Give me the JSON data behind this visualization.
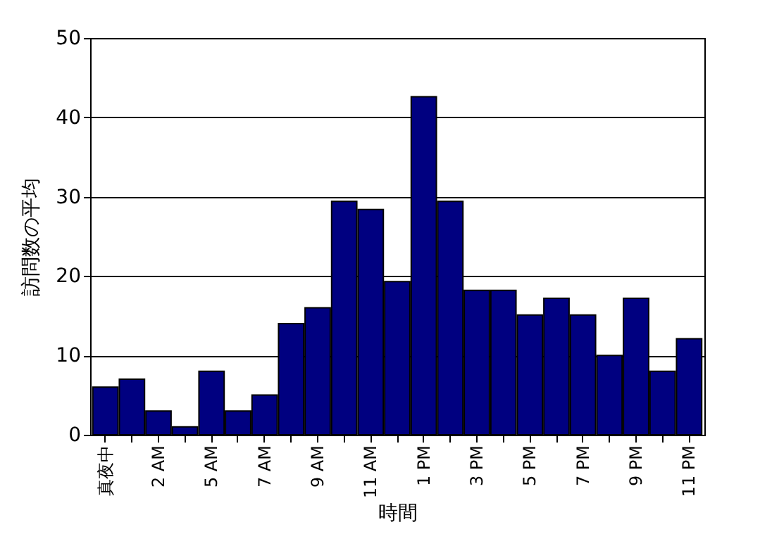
{
  "chart_data": {
    "type": "bar",
    "xlabel": "時間",
    "ylabel": "訪問数の平均",
    "categories": [
      "真夜中",
      null,
      "2 AM",
      null,
      "5 AM",
      null,
      "7 AM",
      null,
      "9 AM",
      null,
      "11 AM",
      null,
      "1 PM",
      null,
      "3 PM",
      null,
      "5 PM",
      null,
      "7 PM",
      null,
      "9 PM",
      null,
      "11 PM"
    ],
    "values": [
      6,
      7,
      3,
      1,
      8,
      3,
      5,
      14,
      16,
      29.4,
      28.4,
      19.3,
      42.6,
      29.4,
      18.2,
      18.2,
      15.1,
      17.2,
      15.1,
      10,
      17.2,
      8,
      12.1
    ],
    "color": "#000080",
    "ylim": [
      0,
      50
    ],
    "yticks": [
      0,
      10,
      20,
      30,
      40,
      50
    ],
    "grid": "y"
  }
}
